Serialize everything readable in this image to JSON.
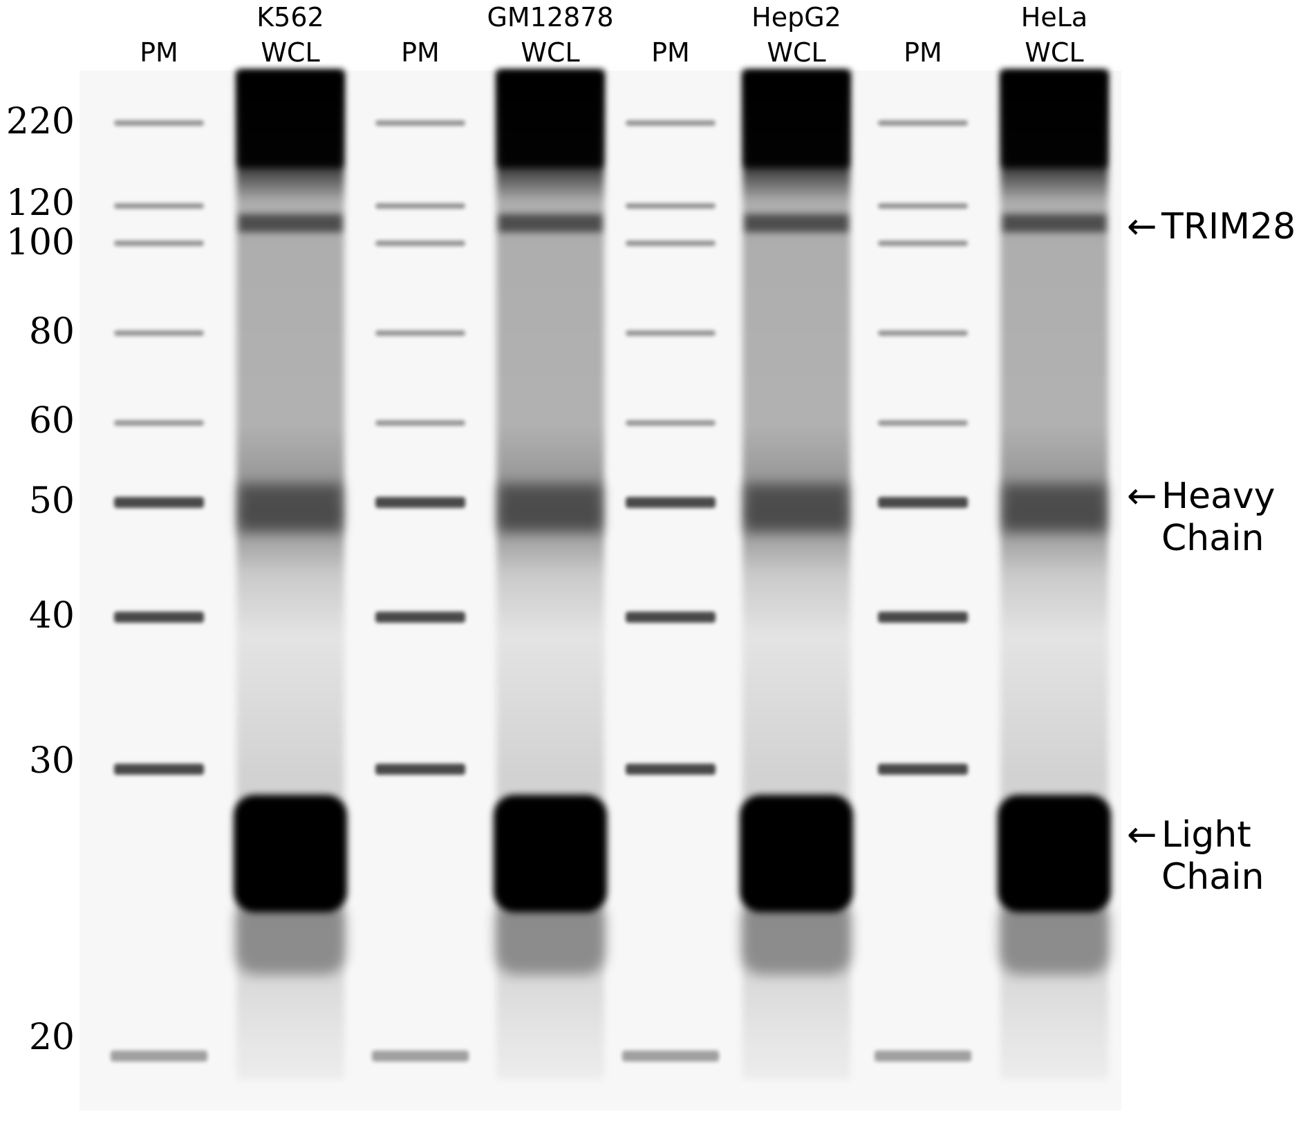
{
  "lanes": [
    {
      "top": "",
      "bottom": "PM",
      "type": "marker"
    },
    {
      "top": "K562",
      "bottom": "WCL",
      "type": "lysate"
    },
    {
      "top": "",
      "bottom": "PM",
      "type": "marker"
    },
    {
      "top": "GM12878",
      "bottom": "WCL",
      "type": "lysate"
    },
    {
      "top": "",
      "bottom": "PM",
      "type": "marker"
    },
    {
      "top": "HepG2",
      "bottom": "WCL",
      "type": "lysate"
    },
    {
      "top": "",
      "bottom": "PM",
      "type": "marker"
    },
    {
      "top": "HeLa",
      "bottom": "WCL",
      "type": "lysate"
    }
  ],
  "mw_markers": [
    "220",
    "120",
    "100",
    "80",
    "60",
    "50",
    "40",
    "30",
    "20"
  ],
  "annotations": [
    {
      "arrow": "←",
      "lines": [
        "TRIM28"
      ]
    },
    {
      "arrow": "←",
      "lines": [
        "Heavy",
        "Chain"
      ]
    },
    {
      "arrow": "←",
      "lines": [
        "Light",
        "Chain"
      ]
    }
  ],
  "colors": {
    "membrane": "#f7f7f7",
    "band": "#000000",
    "text": "#000000"
  }
}
